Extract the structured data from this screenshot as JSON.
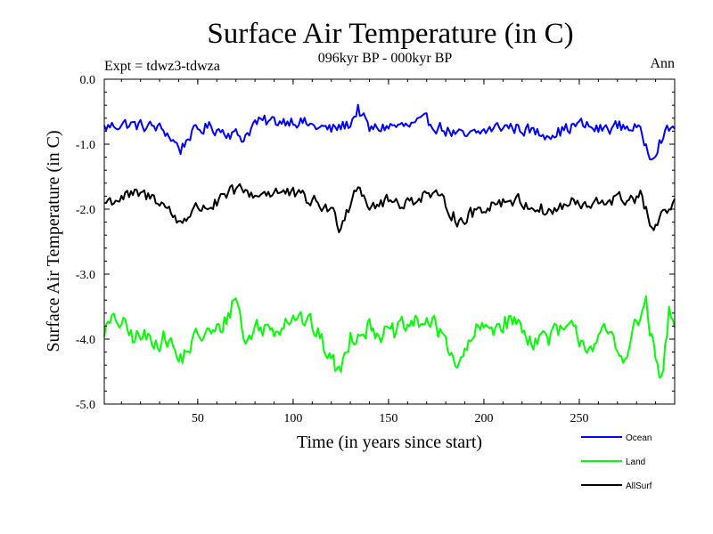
{
  "chart_data": {
    "type": "line",
    "title": "Surface Air Temperature (in C)",
    "subtitle": "096kyr BP - 000kyr BP",
    "experiment": "Expt = tdwz3-tdwza",
    "season": "Ann",
    "xlabel": "Time (in years since start)",
    "ylabel": "Surface Air Temperature (in C)",
    "xlim": [
      1,
      300
    ],
    "ylim": [
      -5.0,
      0.0
    ],
    "x_ticks": [
      50,
      100,
      150,
      200,
      250
    ],
    "x_tick_labels": [
      "50",
      "100",
      "150",
      "200",
      "250"
    ],
    "y_ticks": [
      0.0,
      -1.0,
      -2.0,
      -3.0,
      -4.0,
      -5.0
    ],
    "y_tick_labels": [
      "0.0",
      "-1.0",
      "-2.0",
      "-3.0",
      "-4.0",
      "-5.0"
    ],
    "legend_position": "bottom-right, below plot",
    "series": [
      {
        "name": "Ocean",
        "color": "#0000ff",
        "mean": -0.8,
        "amplitude": 0.14,
        "x_start": 1,
        "x_end": 300,
        "anchors": [
          [
            1,
            -0.75
          ],
          [
            10,
            -0.68
          ],
          [
            20,
            -0.72
          ],
          [
            28,
            -0.74
          ],
          [
            33,
            -0.8
          ],
          [
            41,
            -1.08
          ],
          [
            46,
            -0.85
          ],
          [
            55,
            -0.73
          ],
          [
            65,
            -0.8
          ],
          [
            74,
            -0.9
          ],
          [
            80,
            -0.67
          ],
          [
            90,
            -0.65
          ],
          [
            100,
            -0.62
          ],
          [
            110,
            -0.72
          ],
          [
            120,
            -0.78
          ],
          [
            130,
            -0.68
          ],
          [
            134,
            -0.45
          ],
          [
            140,
            -0.78
          ],
          [
            150,
            -0.72
          ],
          [
            160,
            -0.73
          ],
          [
            170,
            -0.65
          ],
          [
            180,
            -0.78
          ],
          [
            190,
            -0.9
          ],
          [
            200,
            -0.8
          ],
          [
            210,
            -0.72
          ],
          [
            220,
            -0.76
          ],
          [
            230,
            -0.84
          ],
          [
            240,
            -0.8
          ],
          [
            250,
            -0.69
          ],
          [
            260,
            -0.78
          ],
          [
            270,
            -0.72
          ],
          [
            280,
            -0.74
          ],
          [
            288,
            -1.18
          ],
          [
            293,
            -0.9
          ],
          [
            300,
            -0.72
          ]
        ]
      },
      {
        "name": "Land",
        "color": "#00ff00",
        "mean": -3.9,
        "amplitude": 0.22,
        "x_start": 1,
        "x_end": 300,
        "anchors": [
          [
            1,
            -3.85
          ],
          [
            8,
            -3.7
          ],
          [
            15,
            -3.95
          ],
          [
            25,
            -4.0
          ],
          [
            35,
            -4.0
          ],
          [
            40,
            -4.35
          ],
          [
            50,
            -3.95
          ],
          [
            60,
            -3.9
          ],
          [
            65,
            -3.7
          ],
          [
            70,
            -3.3
          ],
          [
            75,
            -4.1
          ],
          [
            80,
            -3.8
          ],
          [
            90,
            -3.85
          ],
          [
            100,
            -3.6
          ],
          [
            110,
            -3.8
          ],
          [
            120,
            -4.3
          ],
          [
            124,
            -4.55
          ],
          [
            130,
            -3.95
          ],
          [
            140,
            -3.8
          ],
          [
            150,
            -3.95
          ],
          [
            160,
            -3.8
          ],
          [
            170,
            -3.7
          ],
          [
            180,
            -4.0
          ],
          [
            187,
            -4.45
          ],
          [
            195,
            -3.9
          ],
          [
            205,
            -3.8
          ],
          [
            215,
            -3.7
          ],
          [
            225,
            -4.0
          ],
          [
            235,
            -3.95
          ],
          [
            245,
            -3.85
          ],
          [
            255,
            -4.1
          ],
          [
            265,
            -3.9
          ],
          [
            272,
            -4.3
          ],
          [
            280,
            -3.8
          ],
          [
            285,
            -3.45
          ],
          [
            289,
            -4.2
          ],
          [
            293,
            -4.7
          ],
          [
            297,
            -3.6
          ],
          [
            300,
            -3.85
          ]
        ]
      },
      {
        "name": "AllSurf",
        "color": "#000000",
        "mean": -1.95,
        "amplitude": 0.15,
        "x_start": 1,
        "x_end": 300,
        "anchors": [
          [
            1,
            -1.9
          ],
          [
            10,
            -1.82
          ],
          [
            20,
            -1.78
          ],
          [
            30,
            -1.85
          ],
          [
            40,
            -2.2
          ],
          [
            50,
            -1.98
          ],
          [
            60,
            -1.92
          ],
          [
            70,
            -1.7
          ],
          [
            80,
            -1.78
          ],
          [
            90,
            -1.72
          ],
          [
            100,
            -1.78
          ],
          [
            110,
            -1.88
          ],
          [
            120,
            -2.02
          ],
          [
            124,
            -2.25
          ],
          [
            130,
            -1.9
          ],
          [
            134,
            -1.58
          ],
          [
            140,
            -1.95
          ],
          [
            150,
            -1.88
          ],
          [
            160,
            -1.9
          ],
          [
            170,
            -1.75
          ],
          [
            180,
            -1.92
          ],
          [
            187,
            -2.2
          ],
          [
            195,
            -2.05
          ],
          [
            205,
            -1.9
          ],
          [
            215,
            -1.85
          ],
          [
            225,
            -1.95
          ],
          [
            235,
            -2.05
          ],
          [
            245,
            -1.9
          ],
          [
            255,
            -1.98
          ],
          [
            265,
            -1.85
          ],
          [
            275,
            -1.85
          ],
          [
            282,
            -1.8
          ],
          [
            289,
            -2.35
          ],
          [
            293,
            -2.15
          ],
          [
            300,
            -1.92
          ]
        ]
      }
    ]
  }
}
